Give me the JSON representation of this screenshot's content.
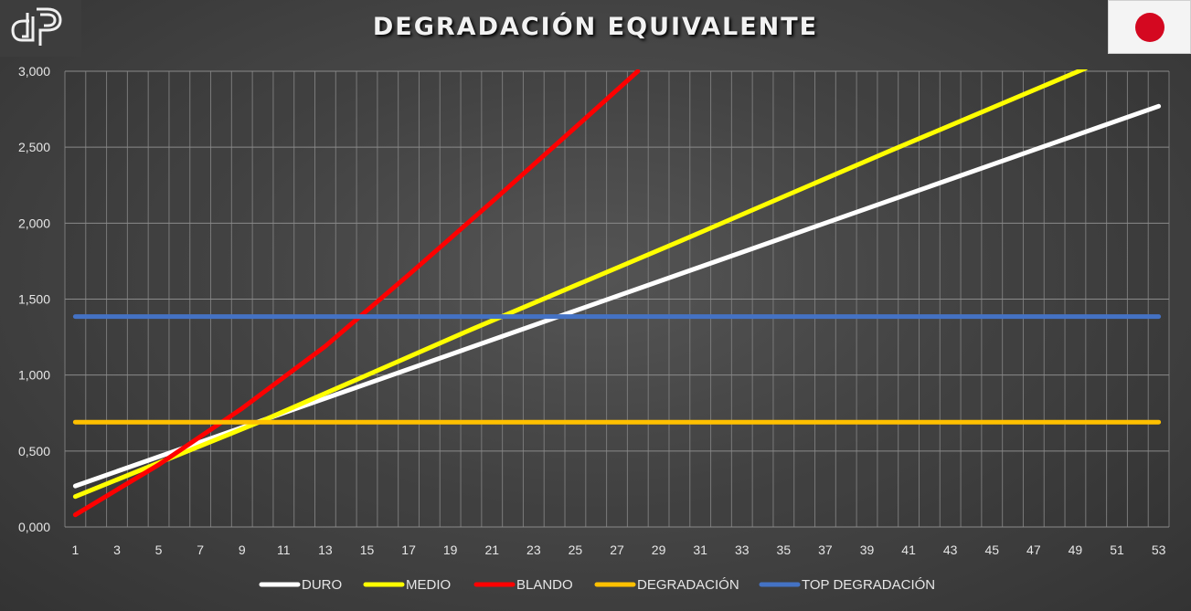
{
  "chart_data": {
    "type": "line",
    "title": "DEGRADACIÓN EQUIVALENTE",
    "xlabel": "",
    "ylabel": "",
    "x_ticks": [
      "1",
      "3",
      "5",
      "7",
      "9",
      "11",
      "13",
      "15",
      "17",
      "19",
      "21",
      "23",
      "25",
      "27",
      "29",
      "31",
      "33",
      "35",
      "37",
      "39",
      "41",
      "43",
      "45",
      "47",
      "49",
      "51",
      "53"
    ],
    "y_ticks": [
      "0,000",
      "0,500",
      "1,000",
      "1,500",
      "2,000",
      "2,500",
      "3,000"
    ],
    "xlim": [
      1,
      53
    ],
    "ylim": [
      0,
      3.0
    ],
    "grid": true,
    "legend_position": "bottom",
    "series": [
      {
        "name": "DURO",
        "color": "#ffffff",
        "x": [
          1,
          53
        ],
        "y": [
          0.27,
          2.77
        ]
      },
      {
        "name": "MEDIO",
        "color": "#ffff00",
        "x": [
          1,
          10,
          20,
          30,
          40,
          49.5
        ],
        "y": [
          0.2,
          0.7,
          1.3,
          1.88,
          2.47,
          3.02
        ]
      },
      {
        "name": "BLANDO",
        "color": "#ff0000",
        "x": [
          1,
          5,
          9,
          13,
          17,
          21,
          25,
          28
        ],
        "y": [
          0.08,
          0.41,
          0.78,
          1.19,
          1.66,
          2.14,
          2.63,
          3.0
        ]
      },
      {
        "name": "DEGRADACIÓN",
        "color": "#ffc000",
        "x": [
          1,
          53
        ],
        "y": [
          0.69,
          0.69
        ]
      },
      {
        "name": "TOP DEGRADACIÓN",
        "color": "#4472c4",
        "x": [
          1,
          53
        ],
        "y": [
          1.385,
          1.385
        ]
      }
    ]
  },
  "icons": {
    "logo": "dp-logo",
    "flag": "japan-flag-icon"
  }
}
